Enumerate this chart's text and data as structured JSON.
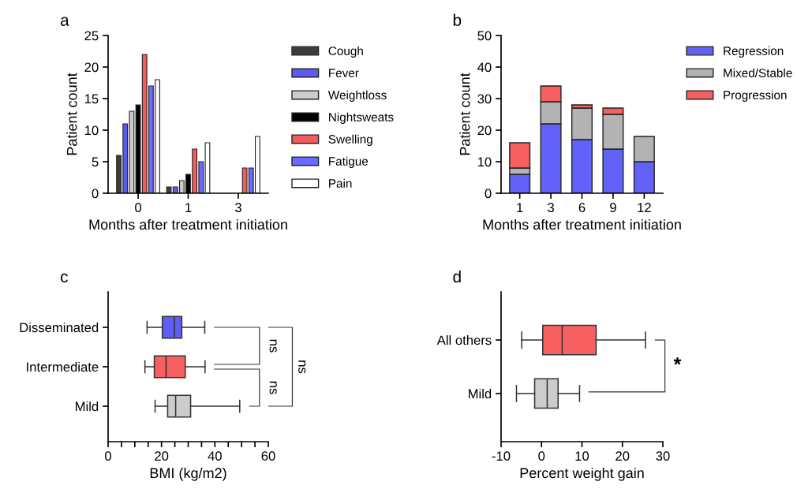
{
  "chart_data": [
    {
      "type": "bar",
      "title": "a",
      "xlabel": "Months after treatment initiation",
      "ylabel": "Patient count",
      "categories": [
        "0",
        "1",
        "3"
      ],
      "series": [
        {
          "name": "Cough",
          "color": "#3c3c3c",
          "values": [
            6,
            1,
            0
          ]
        },
        {
          "name": "Fever",
          "color": "#5b5bf0",
          "values": [
            11,
            1,
            0
          ]
        },
        {
          "name": "Weightloss",
          "color": "#cccccc",
          "values": [
            13,
            2,
            0
          ]
        },
        {
          "name": "Nightsweats",
          "color": "#000000",
          "values": [
            14,
            3,
            0
          ]
        },
        {
          "name": "Swelling",
          "color": "#f45c5c",
          "values": [
            22,
            7,
            4
          ]
        },
        {
          "name": "Fatigue",
          "color": "#6b6bff",
          "values": [
            17,
            5,
            4
          ]
        },
        {
          "name": "Pain",
          "color": "#ffffff",
          "values": [
            18,
            8,
            9
          ]
        }
      ],
      "ylim": [
        0,
        25
      ],
      "yticks": [
        0,
        5,
        10,
        15,
        20,
        25
      ],
      "legend": "right",
      "grid": false
    },
    {
      "type": "bar",
      "title": "b",
      "xlabel": "Months after treatment initiation",
      "ylabel": "Patient count",
      "categories": [
        "1",
        "3",
        "6",
        "9",
        "12"
      ],
      "stacked": true,
      "series": [
        {
          "name": "Regression",
          "color": "#6262f8",
          "values": [
            6,
            22,
            17,
            14,
            10
          ]
        },
        {
          "name": "Mixed/Stable",
          "color": "#b3b3b3",
          "values": [
            2,
            7,
            10,
            11,
            8
          ]
        },
        {
          "name": "Progression",
          "color": "#f66060",
          "values": [
            8,
            5,
            1,
            2,
            0
          ]
        }
      ],
      "ylim": [
        0,
        50
      ],
      "yticks": [
        0,
        10,
        20,
        30,
        40,
        50
      ],
      "legend": "right",
      "grid": false
    },
    {
      "type": "box",
      "title": "c",
      "xlabel": "BMI (kg/m2)",
      "orientation": "horizontal",
      "categories": [
        "Disseminated",
        "Intermediate",
        "Mild"
      ],
      "boxes": [
        {
          "low": 14.6,
          "q1": 20.3,
          "median": 24.8,
          "q3": 27.6,
          "high": 36.2
        },
        {
          "low": 13.8,
          "q1": 17.3,
          "median": 21.7,
          "q3": 28.9,
          "high": 36.3
        },
        {
          "low": 17.6,
          "q1": 22.3,
          "median": 25.3,
          "q3": 30.9,
          "high": 49.3
        }
      ],
      "colors": [
        "#5e5ef5",
        "#f66060",
        "#cccccc"
      ],
      "xlim": [
        0,
        60
      ],
      "xticks": [
        0,
        {
          "value": 5,
          "label": null
        },
        {
          "value": 10,
          "label": null
        },
        {
          "value": 15,
          "label": null
        },
        20,
        {
          "value": 25,
          "label": null
        },
        {
          "value": 30,
          "label": null
        },
        {
          "value": 35,
          "label": null
        },
        40,
        {
          "value": 45,
          "label": null
        },
        {
          "value": 50,
          "label": null
        },
        {
          "value": 55,
          "label": null
        },
        60
      ],
      "annotations": [
        "ns",
        "ns",
        "ns"
      ],
      "grid": false
    },
    {
      "type": "box",
      "title": "d",
      "xlabel": "Percent weight gain",
      "orientation": "horizontal",
      "categories": [
        "All others",
        "Mild"
      ],
      "boxes": [
        {
          "low": -4.9,
          "q1": 0.3,
          "median": 5.1,
          "q3": 13.5,
          "high": 25.7
        },
        {
          "low": -6.2,
          "q1": -1.7,
          "median": 1.4,
          "q3": 4.1,
          "high": 9.4
        }
      ],
      "colors": [
        "#f66060",
        "#cccccc"
      ],
      "xlim": [
        -10,
        30
      ],
      "xticks": [
        -10,
        0,
        10,
        20,
        30
      ],
      "annotations": [
        "*"
      ],
      "grid": false
    }
  ]
}
